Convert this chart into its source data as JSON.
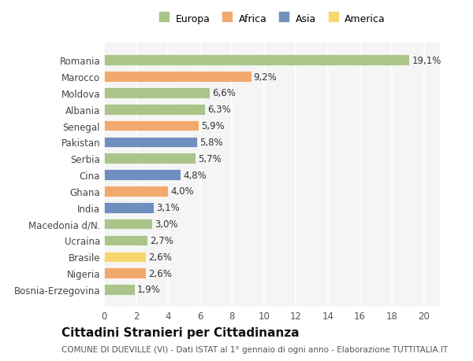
{
  "countries": [
    "Romania",
    "Marocco",
    "Moldova",
    "Albania",
    "Senegal",
    "Pakistan",
    "Serbia",
    "Cina",
    "Ghana",
    "India",
    "Macedonia d/N.",
    "Ucraina",
    "Brasile",
    "Nigeria",
    "Bosnia-Erzegovina"
  ],
  "values": [
    19.1,
    9.2,
    6.6,
    6.3,
    5.9,
    5.8,
    5.7,
    4.8,
    4.0,
    3.1,
    3.0,
    2.7,
    2.6,
    2.6,
    1.9
  ],
  "continents": [
    "Europa",
    "Africa",
    "Europa",
    "Europa",
    "Africa",
    "Asia",
    "Europa",
    "Asia",
    "Africa",
    "Asia",
    "Europa",
    "Europa",
    "America",
    "Africa",
    "Europa"
  ],
  "colors": {
    "Europa": "#aac48a",
    "Africa": "#f2a96e",
    "Asia": "#6f8fbf",
    "America": "#f5d76e"
  },
  "legend_order": [
    "Europa",
    "Africa",
    "Asia",
    "America"
  ],
  "xlim": [
    0,
    21
  ],
  "xticks": [
    0,
    2,
    4,
    6,
    8,
    10,
    12,
    14,
    16,
    18,
    20
  ],
  "title": "Cittadini Stranieri per Cittadinanza",
  "subtitle": "COMUNE DI DUEVILLE (VI) - Dati ISTAT al 1° gennaio di ogni anno - Elaborazione TUTTITALIA.IT",
  "background_color": "#ffffff",
  "plot_background": "#f5f5f5",
  "grid_color": "#ffffff",
  "bar_height": 0.65,
  "label_fontsize": 8.5,
  "value_fontsize": 8.5,
  "title_fontsize": 11,
  "subtitle_fontsize": 7.5,
  "legend_fontsize": 9
}
